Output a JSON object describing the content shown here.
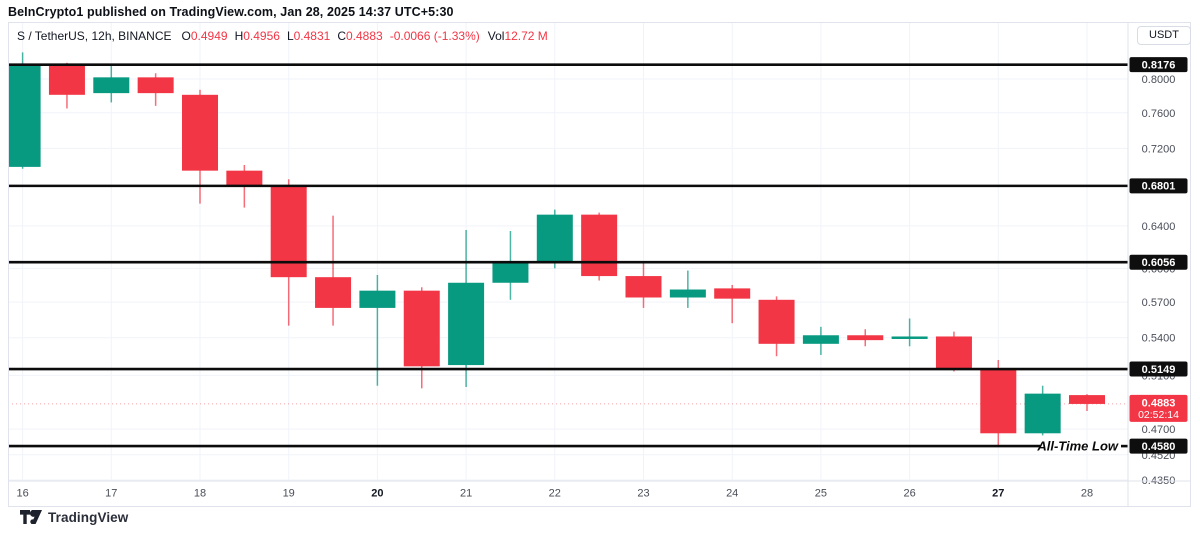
{
  "header": {
    "attribution": "BeInCrypto1 published on TradingView.com, Jan 28, 2025 14:37 UTC+5:30"
  },
  "legend": {
    "symbol_title": "S / TetherUS, 12h, BINANCE",
    "ohlc": [
      {
        "label": "O",
        "value": "0.4949"
      },
      {
        "label": "H",
        "value": "0.4956"
      },
      {
        "label": "L",
        "value": "0.4831"
      },
      {
        "label": "C",
        "value": "0.4883"
      }
    ],
    "change": "-0.0066 (-1.33%)",
    "volume_label": "Vol",
    "volume_value": "12.72 M"
  },
  "axis": {
    "currency_button": "USDT"
  },
  "footer": {
    "logo_text": "TradingView"
  },
  "colors": {
    "up": "#089981",
    "down": "#F23645",
    "level_line": "#0b0b0b",
    "grid": "#f0f3fa",
    "border": "#e0e3eb",
    "axis_text": "#4a4e59",
    "date_text": "#494d57",
    "date_text_bold": "#131722",
    "badge_bg": "#0e0e0e",
    "badge_text": "#ffffff",
    "last_price_badge_bg": "#F23645"
  },
  "chart_data": {
    "type": "candlestick",
    "title": "S / TetherUS, 12h, BINANCE",
    "interval": "12h",
    "y_axis": {
      "unit": "USDT",
      "scale": "log",
      "ticks": [
        {
          "label": "0.8000",
          "value": 0.8
        },
        {
          "label": "0.7600",
          "value": 0.76
        },
        {
          "label": "0.7200",
          "value": 0.72
        },
        {
          "label": "0.6400",
          "value": 0.64
        },
        {
          "label": "0.6000",
          "value": 0.6
        },
        {
          "label": "0.5700",
          "value": 0.57
        },
        {
          "label": "0.5400",
          "value": 0.54
        },
        {
          "label": "0.5100",
          "value": 0.51
        },
        {
          "label": "0.4700",
          "value": 0.47
        },
        {
          "label": "0.4520",
          "value": 0.452
        },
        {
          "label": "0.4350",
          "value": 0.435
        }
      ]
    },
    "x_axis": {
      "labels": [
        {
          "label": "16",
          "bold": false
        },
        {
          "label": "17",
          "bold": false
        },
        {
          "label": "18",
          "bold": false
        },
        {
          "label": "19",
          "bold": false
        },
        {
          "label": "20",
          "bold": true
        },
        {
          "label": "21",
          "bold": false
        },
        {
          "label": "22",
          "bold": false
        },
        {
          "label": "23",
          "bold": false
        },
        {
          "label": "24",
          "bold": false
        },
        {
          "label": "25",
          "bold": false
        },
        {
          "label": "26",
          "bold": false
        },
        {
          "label": "27",
          "bold": true
        },
        {
          "label": "28",
          "bold": false
        }
      ]
    },
    "levels": [
      {
        "label": "0.8176",
        "value": 0.8176
      },
      {
        "label": "0.6801",
        "value": 0.6801
      },
      {
        "label": "0.6056",
        "value": 0.6056
      },
      {
        "label": "0.5149",
        "value": 0.5149
      },
      {
        "label": "0.4580",
        "value": 0.458,
        "annotation": "All-Time Low"
      }
    ],
    "last_price": {
      "label": "0.4883",
      "countdown": "02:52:14",
      "value": 0.4883
    },
    "candles": [
      {
        "o": 0.7,
        "h": 0.833,
        "l": 0.698,
        "c": 0.817
      },
      {
        "o": 0.817,
        "h": 0.82,
        "l": 0.765,
        "c": 0.781
      },
      {
        "o": 0.783,
        "h": 0.818,
        "l": 0.772,
        "c": 0.802
      },
      {
        "o": 0.802,
        "h": 0.807,
        "l": 0.768,
        "c": 0.783
      },
      {
        "o": 0.781,
        "h": 0.787,
        "l": 0.662,
        "c": 0.696
      },
      {
        "o": 0.696,
        "h": 0.702,
        "l": 0.658,
        "c": 0.68
      },
      {
        "o": 0.68,
        "h": 0.687,
        "l": 0.55,
        "c": 0.592
      },
      {
        "o": 0.592,
        "h": 0.65,
        "l": 0.55,
        "c": 0.565
      },
      {
        "o": 0.565,
        "h": 0.594,
        "l": 0.502,
        "c": 0.58
      },
      {
        "o": 0.58,
        "h": 0.583,
        "l": 0.5,
        "c": 0.517
      },
      {
        "o": 0.518,
        "h": 0.636,
        "l": 0.501,
        "c": 0.587
      },
      {
        "o": 0.587,
        "h": 0.635,
        "l": 0.572,
        "c": 0.605
      },
      {
        "o": 0.606,
        "h": 0.656,
        "l": 0.6,
        "c": 0.651
      },
      {
        "o": 0.651,
        "h": 0.653,
        "l": 0.589,
        "c": 0.593
      },
      {
        "o": 0.593,
        "h": 0.605,
        "l": 0.565,
        "c": 0.574
      },
      {
        "o": 0.574,
        "h": 0.598,
        "l": 0.565,
        "c": 0.581
      },
      {
        "o": 0.582,
        "h": 0.585,
        "l": 0.552,
        "c": 0.573
      },
      {
        "o": 0.572,
        "h": 0.575,
        "l": 0.525,
        "c": 0.535
      },
      {
        "o": 0.535,
        "h": 0.549,
        "l": 0.526,
        "c": 0.542
      },
      {
        "o": 0.542,
        "h": 0.547,
        "l": 0.533,
        "c": 0.538
      },
      {
        "o": 0.539,
        "h": 0.556,
        "l": 0.533,
        "c": 0.541
      },
      {
        "o": 0.541,
        "h": 0.545,
        "l": 0.513,
        "c": 0.515
      },
      {
        "o": 0.515,
        "h": 0.522,
        "l": 0.4575,
        "c": 0.467
      },
      {
        "o": 0.467,
        "h": 0.502,
        "l": 0.4655,
        "c": 0.496
      },
      {
        "o": 0.4949,
        "h": 0.4956,
        "l": 0.4831,
        "c": 0.4883
      }
    ]
  }
}
